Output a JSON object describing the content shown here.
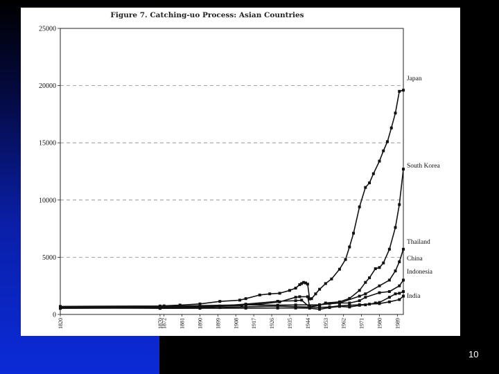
{
  "slide": {
    "number": "10"
  },
  "chart_data": {
    "type": "line",
    "title": "Figure 7. Catching-uo Process: Asian Countries",
    "xlabel": "",
    "ylabel": "",
    "ylim": [
      0,
      25000
    ],
    "xlim": [
      1820,
      1992
    ],
    "yticks": [
      "0",
      "5000",
      "10000",
      "15000",
      "20000",
      "25000"
    ],
    "xticks": [
      "1820",
      "1870",
      "1872",
      "1881",
      "1890",
      "1899",
      "1908",
      "1917",
      "1926",
      "1935",
      "1944",
      "1953",
      "1962",
      "1971",
      "1980",
      "1989"
    ],
    "grid": "dashed horizontal",
    "series": [
      {
        "name": "Japan",
        "x": [
          1820,
          1870,
          1872,
          1880,
          1890,
          1900,
          1910,
          1913,
          1920,
          1925,
          1930,
          1935,
          1938,
          1940,
          1941,
          1942,
          1943,
          1944,
          1945,
          1946,
          1948,
          1950,
          1953,
          1956,
          1960,
          1963,
          1965,
          1967,
          1970,
          1973,
          1975,
          1977,
          1980,
          1982,
          1984,
          1986,
          1988,
          1990,
          1992
        ],
        "values": [
          700,
          740,
          750,
          820,
          920,
          1140,
          1250,
          1380,
          1700,
          1800,
          1850,
          2100,
          2300,
          2600,
          2700,
          2800,
          2750,
          2650,
          1350,
          1380,
          1800,
          2200,
          2700,
          3100,
          3950,
          4800,
          5900,
          7100,
          9400,
          11100,
          11500,
          12300,
          13400,
          14300,
          15100,
          16300,
          17600,
          19500,
          19600
        ]
      },
      {
        "name": "South Korea",
        "x": [
          1820,
          1870,
          1872,
          1890,
          1911,
          1913,
          1920,
          1930,
          1938,
          1940,
          1944,
          1945,
          1950,
          1953,
          1960,
          1965,
          1970,
          1973,
          1975,
          1978,
          1980,
          1982,
          1985,
          1988,
          1990,
          1992
        ],
        "values": [
          600,
          600,
          610,
          640,
          780,
          850,
          900,
          1100,
          1500,
          1550,
          1550,
          700,
          800,
          1000,
          1100,
          1400,
          2100,
          2800,
          3200,
          4000,
          4100,
          4500,
          5700,
          7600,
          9600,
          12700
        ]
      },
      {
        "name": "Thailand",
        "x": [
          1820,
          1870,
          1913,
          1929,
          1938,
          1950,
          1960,
          1970,
          1973,
          1980,
          1985,
          1988,
          1990,
          1992
        ],
        "values": [
          570,
          700,
          840,
          810,
          830,
          850,
          1000,
          1600,
          1800,
          2500,
          3000,
          3800,
          4600,
          5700
        ]
      },
      {
        "name": "China",
        "x": [
          1820,
          1870,
          1890,
          1913,
          1929,
          1938,
          1945,
          1950,
          1955,
          1960,
          1965,
          1970,
          1973,
          1978,
          1980,
          1985,
          1988,
          1990,
          1992
        ],
        "values": [
          600,
          530,
          540,
          550,
          560,
          560,
          550,
          450,
          600,
          700,
          650,
          800,
          840,
          1000,
          1050,
          1500,
          1800,
          1850,
          2000
        ]
      },
      {
        "name": "Indonesia",
        "x": [
          1820,
          1870,
          1900,
          1913,
          1929,
          1938,
          1941,
          1945,
          1950,
          1955,
          1960,
          1965,
          1970,
          1973,
          1980,
          1985,
          1990,
          1992
        ],
        "values": [
          650,
          650,
          740,
          900,
          1150,
          1200,
          1250,
          650,
          850,
          950,
          1000,
          1000,
          1200,
          1500,
          1900,
          2000,
          2500,
          3000
        ]
      },
      {
        "name": "India",
        "x": [
          1820,
          1870,
          1900,
          1913,
          1929,
          1938,
          1945,
          1950,
          1955,
          1960,
          1965,
          1970,
          1975,
          1980,
          1985,
          1990,
          1992
        ],
        "values": [
          530,
          560,
          600,
          670,
          730,
          680,
          650,
          620,
          650,
          750,
          800,
          850,
          900,
          950,
          1100,
          1300,
          1600
        ]
      }
    ],
    "legend": "right-end labels"
  }
}
